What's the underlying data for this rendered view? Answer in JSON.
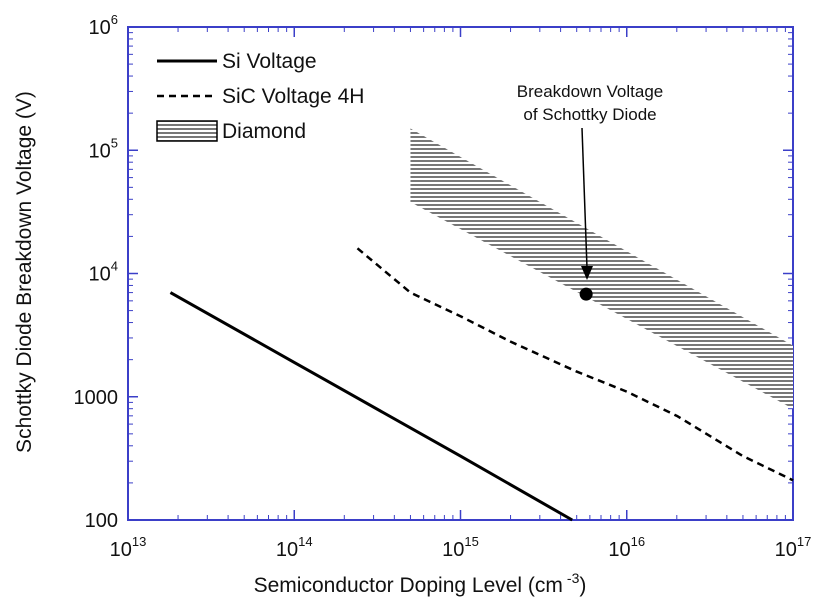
{
  "chart_data": {
    "type": "line",
    "title": "",
    "xlabel": "Semiconductor Doping Level (cm ⁻³)",
    "xlabel_main": "Semiconductor Doping Level (cm",
    "xlabel_sup": "-3",
    "xlabel_close": ")",
    "ylabel": "Schottky Diode Breakdown Voltage (V)",
    "xscale": "log",
    "yscale": "log",
    "xlim": [
      10000000000000.0,
      1e+17
    ],
    "ylim": [
      100,
      1000000
    ],
    "grid": false,
    "legend_position": "top-left",
    "x_ticks": [
      {
        "base": "10",
        "exp": "13",
        "value": 10000000000000.0
      },
      {
        "base": "10",
        "exp": "14",
        "value": 100000000000000.0
      },
      {
        "base": "10",
        "exp": "15",
        "value": 1000000000000000.0
      },
      {
        "base": "10",
        "exp": "16",
        "value": 1e+16
      },
      {
        "base": "10",
        "exp": "17",
        "value": 1e+17
      }
    ],
    "y_ticks": [
      {
        "base": "100",
        "exp": "",
        "value": 100
      },
      {
        "base": "1000",
        "exp": "",
        "value": 1000
      },
      {
        "base": "10",
        "exp": "4",
        "value": 10000
      },
      {
        "base": "10",
        "exp": "5",
        "value": 100000
      },
      {
        "base": "10",
        "exp": "6",
        "value": 1000000
      }
    ],
    "series": [
      {
        "name": "Si Voltage",
        "style": "solid",
        "color": "#000000",
        "x": [
          18000000000000.0,
          100000000000000.0,
          1000000000000000.0,
          4700000000000000.0
        ],
        "y": [
          7000,
          1900,
          330,
          100
        ]
      },
      {
        "name": "SiC Voltage 4H",
        "style": "dashed",
        "color": "#000000",
        "x": [
          240000000000000.0,
          500000000000000.0,
          1000000000000000.0,
          2000000000000000.0,
          5000000000000000.0,
          1e+16,
          2e+16,
          5e+16,
          1e+17
        ],
        "y": [
          16000,
          7000,
          4500,
          2800,
          1600,
          1100,
          700,
          330,
          210
        ]
      },
      {
        "name": "Diamond",
        "style": "hatched-band",
        "color": "#666666",
        "x_upper": [
          500000000000000.0,
          1e+17
        ],
        "y_upper": [
          150000,
          2600
        ],
        "x_lower": [
          500000000000000.0,
          1e+17
        ],
        "y_lower": [
          38000,
          800
        ]
      }
    ],
    "annotations": [
      {
        "line1": "Breakdown Voltage",
        "line2": "of Schottky Diode",
        "point_x": 5700000000000000.0,
        "point_y": 6800
      }
    ]
  }
}
